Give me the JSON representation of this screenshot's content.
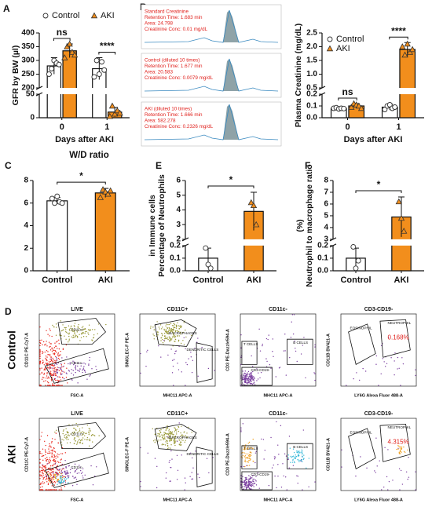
{
  "panel_labels": [
    "A",
    "B",
    "C",
    "E",
    "F",
    "D"
  ],
  "chart_data": [
    {
      "type": "bar",
      "ylabel": [
        "GFR by BW (µl)"
      ],
      "xlabel": "Days after AKI",
      "categories": [
        "0",
        "1"
      ],
      "ylim": [
        [
          0,
          50
        ],
        [
          200,
          400
        ]
      ],
      "yticks": [
        0,
        50,
        200,
        250,
        300,
        350,
        400
      ],
      "legend": "top",
      "series": [
        {
          "name": "Control",
          "color": "#ffffff",
          "marker": "circle",
          "values": [
            280,
            270
          ],
          "errors": [
            30,
            40
          ],
          "points": [
            [
              250,
              270,
              300,
              290,
              285
            ],
            [
              240,
              300,
              250,
              295,
              265
            ]
          ]
        },
        {
          "name": "AKI",
          "color": "#f28e1c",
          "marker": "triangle",
          "values": [
            335,
            12
          ],
          "errors": [
            25,
            10
          ],
          "points": [
            [
              310,
              350,
              360,
              330,
              320
            ],
            [
              3,
              25,
              8,
              15,
              10
            ]
          ]
        }
      ],
      "annotations": [
        "ns",
        "****"
      ]
    },
    {
      "type": "bar",
      "ylabel": [
        "Plasma Creatinine (mg/dL)"
      ],
      "xlabel": "Days after AKI",
      "categories": [
        "0",
        "1"
      ],
      "ylim": [
        [
          0,
          0.2
        ],
        [
          0.5,
          2.5
        ]
      ],
      "yticks": [
        {
          "value": 0,
          "label": "0.0"
        },
        0.1,
        0.2,
        0.5,
        {
          "value": 1,
          "label": "1.0"
        },
        1.5,
        {
          "value": 2,
          "label": "2.0"
        },
        2.5
      ],
      "legend": "upper left",
      "series": [
        {
          "name": "Control",
          "color": "#ffffff",
          "marker": "circle",
          "values": [
            0.08,
            0.09
          ],
          "errors": [
            0.005,
            0.025
          ],
          "points": [
            [
              0.08,
              0.085,
              0.075,
              0.08,
              0.078
            ],
            [
              0.07,
              0.1,
              0.11,
              0.08,
              0.09
            ]
          ]
        },
        {
          "name": "AKI",
          "color": "#f28e1c",
          "marker": "triangle",
          "values": [
            0.1,
            1.9
          ],
          "errors": [
            0.02,
            0.25
          ],
          "points": [
            [
              0.09,
              0.12,
              0.11,
              0.1,
              0.08
            ],
            [
              2.0,
              1.7,
              2.1,
              1.8,
              1.9
            ]
          ]
        }
      ],
      "annotations": [
        "ns",
        "****"
      ]
    },
    {
      "type": "bar",
      "title": "W/D ratio",
      "categories": [
        "Control",
        "AKI"
      ],
      "values": [
        6.2,
        6.9
      ],
      "errors": [
        0.3,
        0.4
      ],
      "colors": [
        "#ffffff",
        "#f28e1c"
      ],
      "markers": [
        "circle",
        "triangle"
      ],
      "points": [
        [
          6.4,
          6.0,
          6.6,
          6.1,
          6.0
        ],
        [
          6.5,
          7.2,
          7.0,
          6.8,
          7.1
        ]
      ],
      "ylim": [
        0,
        8
      ],
      "yticks": [
        0,
        2,
        4,
        6,
        8
      ],
      "annotations": [
        "*"
      ]
    },
    {
      "type": "bar",
      "ylabel": [
        "Percentage of Neutrophils",
        "in Immune cells"
      ],
      "categories": [
        "Control",
        "AKI"
      ],
      "values": [
        0.1,
        3.9
      ],
      "errors": [
        0.08,
        1.3
      ],
      "colors": [
        "#ffffff",
        "#f28e1c"
      ],
      "markers": [
        "circle",
        "triangle"
      ],
      "points": [
        [
          0.18,
          0.05,
          0.02
        ],
        [
          4.5,
          4.3,
          3.0
        ]
      ],
      "ylim": [
        [
          0,
          0.2
        ],
        [
          2,
          6
        ]
      ],
      "yticks": [
        {
          "value": 0,
          "label": "0.0"
        },
        0.1,
        0.2,
        2,
        3,
        4,
        5,
        6
      ],
      "annotations": [
        "*"
      ]
    },
    {
      "type": "bar",
      "ylabel": [
        "Neutrophil to macrophage ratio",
        "(%)"
      ],
      "categories": [
        "Control",
        "AKI"
      ],
      "values": [
        0.1,
        4.9
      ],
      "errors": [
        0.08,
        1.7
      ],
      "colors": [
        "#ffffff",
        "#f28e1c"
      ],
      "markers": [
        "circle",
        "triangle"
      ],
      "points": [
        [
          0.19,
          0.02,
          0.08
        ],
        [
          6.2,
          4.8,
          3.7
        ]
      ],
      "ylim": [
        [
          0,
          0.2
        ],
        [
          3,
          8
        ]
      ],
      "yticks": [
        {
          "value": 0,
          "label": "0.0"
        },
        0.1,
        0.2,
        3,
        4,
        5,
        6,
        7,
        8
      ],
      "annotations": [
        "*"
      ]
    }
  ],
  "chromatograms": [
    {
      "lines": [
        "Standard Creatinine",
        "Retention Time: 1.683 min",
        "Area: 24.798",
        "Creatinine Conc: 0.01 mg/dL"
      ]
    },
    {
      "lines": [
        "Control (diluted 10 times)",
        "Retention Time: 1.677 min",
        "Area: 20.583",
        "Creatinine Conc: 0.0079 mg/dL"
      ]
    },
    {
      "lines": [
        "AKI (diluted 10 times)",
        "Retention Time: 1.666 min",
        "Area: 582.278",
        "Creatinine Conc: 0.2326 mg/dL"
      ]
    }
  ],
  "flow": {
    "rows": [
      {
        "label": "Control",
        "percent": "0.168%"
      },
      {
        "label": "AKI",
        "percent": "4.315%"
      }
    ],
    "columns": [
      {
        "title": "LIVE",
        "xlabel": "FSC-A",
        "ylabel": "CD11C PE-Cy7-A",
        "gates": [
          "CD11c+",
          "CD11c-"
        ]
      },
      {
        "title": "CD11C+",
        "xlabel": "MHC11 APC-A",
        "ylabel": "SINGLEC-F PE-A",
        "gates": [
          "MACROPHAGES",
          "DENDRITIC CELLS"
        ]
      },
      {
        "title": "CD11c-",
        "xlabel": "MHC11 APC-A",
        "ylabel": "CD3 PE-Dazzle594-A",
        "gates": [
          "T CELLS",
          "B CELLS",
          "CD3-CD19-"
        ]
      },
      {
        "title": "CD3-CD19-",
        "xlabel": "LY6G Alexa Fluor 488-A",
        "ylabel": "CD11B BV421-A",
        "gates": [
          "EOSINOPHIL",
          "NEUTROPHIL"
        ]
      }
    ]
  }
}
